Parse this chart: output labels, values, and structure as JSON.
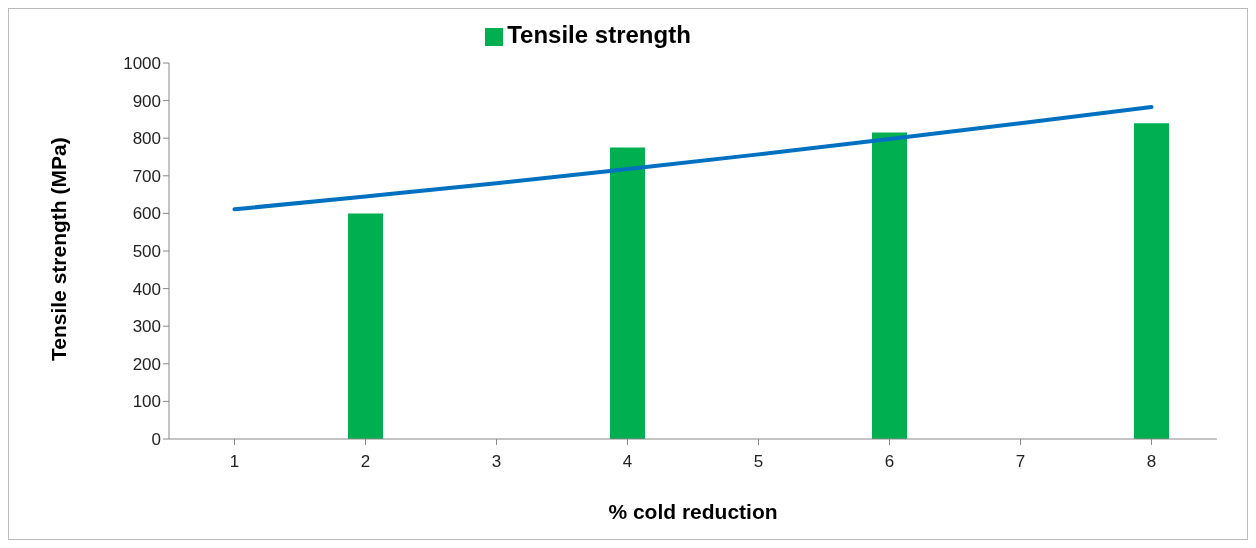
{
  "chart_data": {
    "type": "bar",
    "xlabel": "% cold reduction",
    "ylabel": "Tensile strength (MPa)",
    "categories": [
      "1",
      "2",
      "3",
      "4",
      "5",
      "6",
      "7",
      "8"
    ],
    "series": [
      {
        "name": "Tensile strength",
        "color": "#00b050",
        "values": [
          null,
          600,
          null,
          775,
          null,
          815,
          null,
          840
        ]
      },
      {
        "type": "line",
        "color": "#0070c0",
        "values": [
          611,
          645,
          680,
          718,
          757,
          798,
          840,
          883
        ]
      }
    ],
    "ylim": [
      0,
      1000
    ],
    "yticks": [
      0,
      100,
      200,
      300,
      400,
      500,
      600,
      700,
      800,
      900,
      1000
    ],
    "grid": false,
    "legend": "top",
    "marker": "none",
    "line_style": "solid"
  }
}
